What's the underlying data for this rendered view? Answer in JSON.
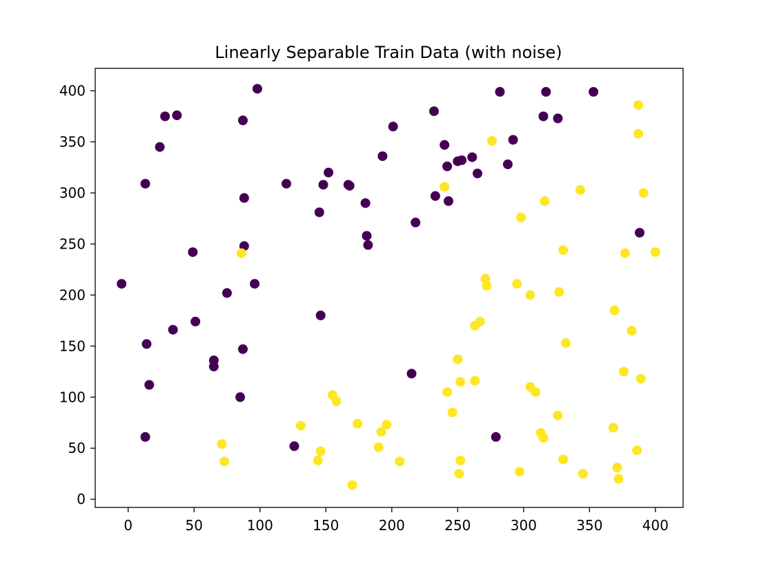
{
  "chart_data": {
    "type": "scatter",
    "title": "Linearly Separable Train Data (with noise)",
    "xlabel": "",
    "ylabel": "",
    "xlim": [
      -25,
      421
    ],
    "ylim": [
      -8,
      422
    ],
    "xticks": [
      0,
      50,
      100,
      150,
      200,
      250,
      300,
      350,
      400
    ],
    "yticks": [
      0,
      50,
      100,
      150,
      200,
      250,
      300,
      350,
      400
    ],
    "grid": false,
    "legend": "none",
    "colors": {
      "class0": "#440154",
      "class1": "#fde725"
    },
    "points": [
      {
        "x": 98,
        "y": 402,
        "c": 0
      },
      {
        "x": 282,
        "y": 399,
        "c": 0
      },
      {
        "x": 317,
        "y": 399,
        "c": 0
      },
      {
        "x": 353,
        "y": 399,
        "c": 0
      },
      {
        "x": 232,
        "y": 380,
        "c": 0
      },
      {
        "x": 28,
        "y": 375,
        "c": 0
      },
      {
        "x": 37,
        "y": 376,
        "c": 0
      },
      {
        "x": 87,
        "y": 371,
        "c": 0
      },
      {
        "x": 315,
        "y": 375,
        "c": 0
      },
      {
        "x": 326,
        "y": 373,
        "c": 0
      },
      {
        "x": 201,
        "y": 365,
        "c": 0
      },
      {
        "x": 292,
        "y": 352,
        "c": 0
      },
      {
        "x": 24,
        "y": 345,
        "c": 0
      },
      {
        "x": 240,
        "y": 347,
        "c": 0
      },
      {
        "x": 193,
        "y": 336,
        "c": 0
      },
      {
        "x": 250,
        "y": 331,
        "c": 0
      },
      {
        "x": 253,
        "y": 332,
        "c": 0
      },
      {
        "x": 261,
        "y": 335,
        "c": 0
      },
      {
        "x": 242,
        "y": 326,
        "c": 0
      },
      {
        "x": 288,
        "y": 328,
        "c": 0
      },
      {
        "x": 152,
        "y": 320,
        "c": 0
      },
      {
        "x": 265,
        "y": 319,
        "c": 0
      },
      {
        "x": 13,
        "y": 309,
        "c": 0
      },
      {
        "x": 120,
        "y": 309,
        "c": 0
      },
      {
        "x": 148,
        "y": 308,
        "c": 0
      },
      {
        "x": 167,
        "y": 308,
        "c": 0
      },
      {
        "x": 168,
        "y": 307,
        "c": 0
      },
      {
        "x": 88,
        "y": 295,
        "c": 0
      },
      {
        "x": 233,
        "y": 297,
        "c": 0
      },
      {
        "x": 243,
        "y": 292,
        "c": 0
      },
      {
        "x": 180,
        "y": 290,
        "c": 0
      },
      {
        "x": 145,
        "y": 281,
        "c": 0
      },
      {
        "x": 218,
        "y": 271,
        "c": 0
      },
      {
        "x": 388,
        "y": 261,
        "c": 0
      },
      {
        "x": 181,
        "y": 258,
        "c": 0
      },
      {
        "x": 182,
        "y": 249,
        "c": 0
      },
      {
        "x": 88,
        "y": 248,
        "c": 0
      },
      {
        "x": 49,
        "y": 242,
        "c": 0
      },
      {
        "x": -5,
        "y": 211,
        "c": 0
      },
      {
        "x": 96,
        "y": 211,
        "c": 0
      },
      {
        "x": 75,
        "y": 202,
        "c": 0
      },
      {
        "x": 146,
        "y": 180,
        "c": 0
      },
      {
        "x": 51,
        "y": 174,
        "c": 0
      },
      {
        "x": 34,
        "y": 166,
        "c": 0
      },
      {
        "x": 14,
        "y": 152,
        "c": 0
      },
      {
        "x": 87,
        "y": 147,
        "c": 0
      },
      {
        "x": 65,
        "y": 136,
        "c": 0
      },
      {
        "x": 65,
        "y": 130,
        "c": 0
      },
      {
        "x": 215,
        "y": 123,
        "c": 0
      },
      {
        "x": 16,
        "y": 112,
        "c": 0
      },
      {
        "x": 85,
        "y": 100,
        "c": 0
      },
      {
        "x": 13,
        "y": 61,
        "c": 0
      },
      {
        "x": 279,
        "y": 61,
        "c": 0
      },
      {
        "x": 126,
        "y": 52,
        "c": 0
      },
      {
        "x": 387,
        "y": 386,
        "c": 1
      },
      {
        "x": 387,
        "y": 358,
        "c": 1
      },
      {
        "x": 276,
        "y": 351,
        "c": 1
      },
      {
        "x": 240,
        "y": 306,
        "c": 1
      },
      {
        "x": 343,
        "y": 303,
        "c": 1
      },
      {
        "x": 391,
        "y": 300,
        "c": 1
      },
      {
        "x": 316,
        "y": 292,
        "c": 1
      },
      {
        "x": 298,
        "y": 276,
        "c": 1
      },
      {
        "x": 330,
        "y": 244,
        "c": 1
      },
      {
        "x": 377,
        "y": 241,
        "c": 1
      },
      {
        "x": 400,
        "y": 242,
        "c": 1
      },
      {
        "x": 86,
        "y": 241,
        "c": 1
      },
      {
        "x": 271,
        "y": 216,
        "c": 1
      },
      {
        "x": 272,
        "y": 209,
        "c": 1
      },
      {
        "x": 295,
        "y": 211,
        "c": 1
      },
      {
        "x": 305,
        "y": 200,
        "c": 1
      },
      {
        "x": 327,
        "y": 203,
        "c": 1
      },
      {
        "x": 369,
        "y": 185,
        "c": 1
      },
      {
        "x": 267,
        "y": 174,
        "c": 1
      },
      {
        "x": 263,
        "y": 170,
        "c": 1
      },
      {
        "x": 382,
        "y": 165,
        "c": 1
      },
      {
        "x": 332,
        "y": 153,
        "c": 1
      },
      {
        "x": 250,
        "y": 137,
        "c": 1
      },
      {
        "x": 376,
        "y": 125,
        "c": 1
      },
      {
        "x": 389,
        "y": 118,
        "c": 1
      },
      {
        "x": 263,
        "y": 116,
        "c": 1
      },
      {
        "x": 252,
        "y": 115,
        "c": 1
      },
      {
        "x": 305,
        "y": 110,
        "c": 1
      },
      {
        "x": 242,
        "y": 105,
        "c": 1
      },
      {
        "x": 309,
        "y": 105,
        "c": 1
      },
      {
        "x": 155,
        "y": 102,
        "c": 1
      },
      {
        "x": 158,
        "y": 96,
        "c": 1
      },
      {
        "x": 246,
        "y": 85,
        "c": 1
      },
      {
        "x": 326,
        "y": 82,
        "c": 1
      },
      {
        "x": 174,
        "y": 74,
        "c": 1
      },
      {
        "x": 196,
        "y": 73,
        "c": 1
      },
      {
        "x": 131,
        "y": 72,
        "c": 1
      },
      {
        "x": 368,
        "y": 70,
        "c": 1
      },
      {
        "x": 192,
        "y": 66,
        "c": 1
      },
      {
        "x": 313,
        "y": 65,
        "c": 1
      },
      {
        "x": 315,
        "y": 60,
        "c": 1
      },
      {
        "x": 71,
        "y": 54,
        "c": 1
      },
      {
        "x": 190,
        "y": 51,
        "c": 1
      },
      {
        "x": 386,
        "y": 48,
        "c": 1
      },
      {
        "x": 146,
        "y": 47,
        "c": 1
      },
      {
        "x": 330,
        "y": 39,
        "c": 1
      },
      {
        "x": 144,
        "y": 38,
        "c": 1
      },
      {
        "x": 252,
        "y": 38,
        "c": 1
      },
      {
        "x": 73,
        "y": 37,
        "c": 1
      },
      {
        "x": 206,
        "y": 37,
        "c": 1
      },
      {
        "x": 371,
        "y": 31,
        "c": 1
      },
      {
        "x": 297,
        "y": 27,
        "c": 1
      },
      {
        "x": 251,
        "y": 25,
        "c": 1
      },
      {
        "x": 345,
        "y": 25,
        "c": 1
      },
      {
        "x": 372,
        "y": 20,
        "c": 1
      },
      {
        "x": 170,
        "y": 14,
        "c": 1
      }
    ]
  }
}
